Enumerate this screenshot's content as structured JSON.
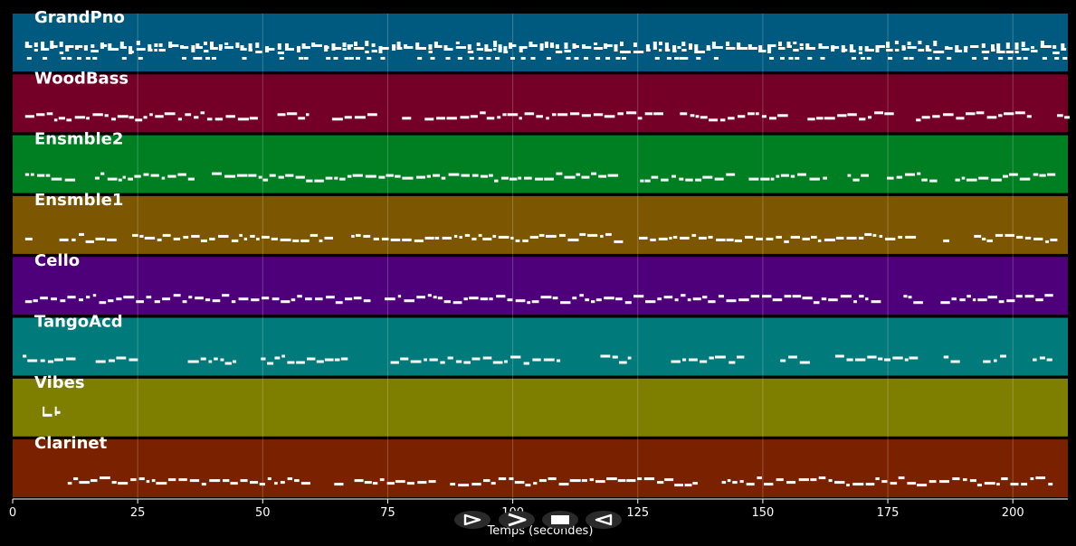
{
  "axis": {
    "title": "Temps (secondes)",
    "xlim": [
      0,
      211
    ],
    "ticks": [
      0,
      25,
      50,
      75,
      100,
      125,
      150,
      175,
      200
    ],
    "tick_labels": [
      "0",
      "25",
      "50",
      "75",
      "100",
      "125",
      "150",
      "175",
      "200"
    ]
  },
  "tracks": [
    {
      "name": "GrandPno",
      "color": "#005a80",
      "density": "dense",
      "start": 2.5,
      "end": 210.5
    },
    {
      "name": "WoodBass",
      "color": "#740028",
      "density": "normal",
      "start": 2.5,
      "end": 210.5
    },
    {
      "name": "Ensmble2",
      "color": "#007e22",
      "density": "normal",
      "start": 2.5,
      "end": 207.5
    },
    {
      "name": "Ensmble1",
      "color": "#7c5600",
      "density": "normal",
      "start": 2.5,
      "end": 207.5
    },
    {
      "name": "Cello",
      "color": "#4e007a",
      "density": "normal",
      "start": 2.5,
      "end": 207.5
    },
    {
      "name": "TangoAcd",
      "color": "#007a7a",
      "density": "sparse",
      "start": 2.0,
      "end": 207.5
    },
    {
      "name": "Vibes",
      "color": "#7e7e00",
      "density": "burst",
      "start": 6.0,
      "end": 10.0
    },
    {
      "name": "Clarinet",
      "color": "#7a2200",
      "density": "normal",
      "start": 11.0,
      "end": 207.5
    }
  ],
  "controls": [
    {
      "name": "play-button",
      "icon": "play-icon"
    },
    {
      "name": "fast-forward-button",
      "icon": "fast-forward-icon"
    },
    {
      "name": "stop-button",
      "icon": "stop-icon"
    },
    {
      "name": "rewind-button",
      "icon": "rewind-icon"
    }
  ]
}
